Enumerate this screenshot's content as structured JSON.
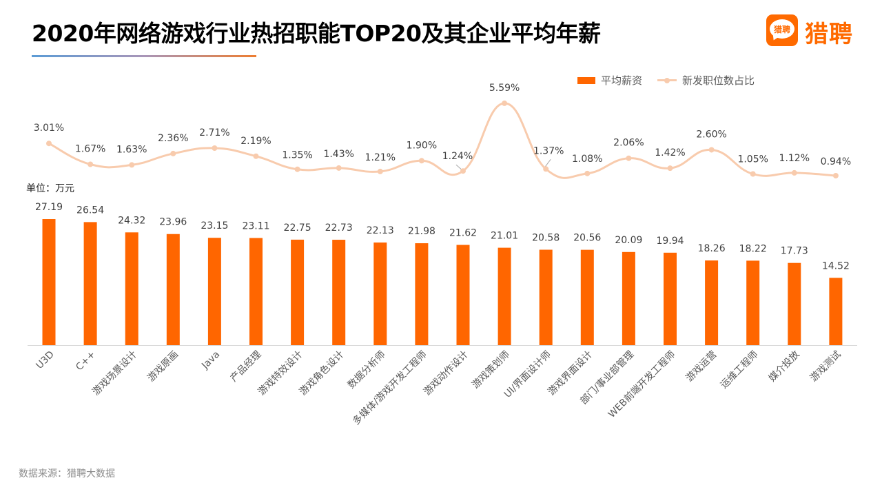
{
  "header": {
    "title": "2020年网络游戏行业热招职能TOP20及其企业平均年薪",
    "logo_icon_text": "猎聘",
    "logo_text": "猎聘"
  },
  "colors": {
    "bar": "#ff6600",
    "line": "#f8cbad",
    "axis": "#d9d9d9",
    "brand": "#ff6a00"
  },
  "unit_label": "单位：万元",
  "source": "数据来源：猎聘大数据",
  "chart_data": {
    "type": "bar+line",
    "title": "2020年网络游戏行业热招职能TOP20及其企业平均年薪",
    "legend_position": "top-right",
    "categories": [
      "U3D",
      "C++",
      "游戏场景设计",
      "游戏原画",
      "Java",
      "产品经理",
      "游戏特效设计",
      "游戏角色设计",
      "数据分析师",
      "多媒体/游戏开发工程师",
      "游戏动作设计",
      "游戏策划师",
      "UI/界面设计师",
      "游戏界面设计",
      "部门/事业部管理",
      "WEB前端开发工程师",
      "游戏运营",
      "运维工程师",
      "媒介投放",
      "游戏测试"
    ],
    "category_display": [
      "U3D",
      "C++",
      "游戏场景设计",
      "游戏原画",
      "Java",
      "产品经理",
      "游戏特效设计",
      "游戏角色设计",
      "数据分析师",
      "多媒体/游戏开发工程师",
      "游戏动作设计",
      "游戏策划师",
      "UI/界面设计师",
      "游戏界面设计",
      "部门/事业部管理",
      "WEB前端开发工程师",
      "游戏运营",
      "运维工程师",
      "媒介投放",
      "游戏测试"
    ],
    "series": [
      {
        "name": "平均薪资",
        "type": "bar",
        "unit": "万元",
        "values": [
          27.19,
          26.54,
          24.32,
          23.96,
          23.15,
          23.11,
          22.75,
          22.73,
          22.13,
          21.98,
          21.62,
          21.01,
          20.58,
          20.56,
          20.09,
          19.94,
          18.26,
          18.22,
          17.73,
          14.52
        ],
        "labels": [
          "27.19",
          "26.54",
          "24.32",
          "23.96",
          "23.15",
          "23.11",
          "22.75",
          "22.73",
          "22.13",
          "21.98",
          "21.62",
          "21.01",
          "20.58",
          "20.56",
          "20.09",
          "19.94",
          "18.26",
          "18.22",
          "17.73",
          "14.52"
        ]
      },
      {
        "name": "新发职位数占比",
        "type": "line",
        "unit": "%",
        "values": [
          3.01,
          1.67,
          1.63,
          2.36,
          2.71,
          2.19,
          1.35,
          1.43,
          1.21,
          1.9,
          1.24,
          5.59,
          1.37,
          1.08,
          2.06,
          1.42,
          2.6,
          1.05,
          1.12,
          0.94
        ],
        "labels": [
          "3.01%",
          "1.67%",
          "1.63%",
          "2.36%",
          "2.71%",
          "2.19%",
          "1.35%",
          "1.43%",
          "1.21%",
          "1.90%",
          "1.24%",
          "5.59%",
          "1.37%",
          "1.08%",
          "2.06%",
          "1.42%",
          "2.60%",
          "1.05%",
          "1.12%",
          "0.94%"
        ]
      }
    ],
    "bar_ylim": [
      0,
      27.19
    ],
    "line_ylim": [
      0.94,
      5.59
    ],
    "grid": false
  }
}
